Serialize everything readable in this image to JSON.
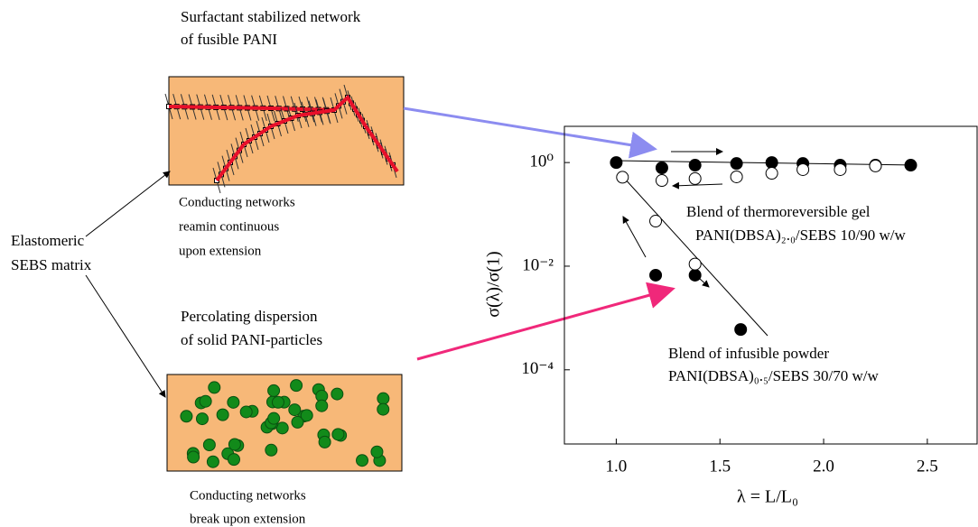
{
  "diagram": {
    "top_title": [
      "Surfactant stabilized network",
      "of fusible PANI"
    ],
    "top_caption": [
      "Conducting networks",
      "reamin continuous",
      "upon extension"
    ],
    "matrix_label": [
      "Elastomeric",
      "SEBS matrix"
    ],
    "bottom_title": [
      "Percolating dispersion",
      "of solid PANI-particles"
    ],
    "bottom_caption": [
      "Conducting networks",
      "break upon extension"
    ]
  },
  "chart_data": {
    "type": "scatter",
    "xlabel": "λ = L/L₀",
    "ylabel": "σ(λ)/σ(1)",
    "xlim": [
      0.75,
      2.74
    ],
    "ylim": [
      3.7e-06,
      5
    ],
    "log_y": true,
    "xticks": [
      {
        "value": 1,
        "label": "1.0"
      },
      {
        "value": 1.5,
        "label": "1.5"
      },
      {
        "value": 2,
        "label": "2.0"
      },
      {
        "value": 2.5,
        "label": "2.5"
      }
    ],
    "yticks": [
      {
        "value": 1,
        "label": "10⁰"
      },
      {
        "value": 0.01,
        "label": "10⁻²"
      },
      {
        "value": 0.0001,
        "label": "10⁻⁴"
      }
    ],
    "annotations": [
      "Blend of thermoreversible gel",
      "PANI(DBSA)₂.₀/SEBS 10/90 w/w",
      "Blend of infusible powder",
      "PANI(DBSA)₀.₅/SEBS 30/70 w/w"
    ],
    "series": [
      {
        "marker": "filled",
        "color": "#000000",
        "x": [
          1.0,
          1.22,
          1.38,
          1.58,
          1.75,
          1.9,
          2.08,
          2.25,
          2.42
        ],
        "values": [
          1.0,
          0.79,
          0.89,
          0.96,
          1.0,
          0.96,
          0.89,
          0.89,
          0.89
        ]
      },
      {
        "marker": "open",
        "color": "#000000",
        "x": [
          1.22,
          1.38,
          1.58,
          1.75,
          1.9,
          2.08,
          2.25
        ],
        "values": [
          0.45,
          0.49,
          0.53,
          0.62,
          0.73,
          0.73,
          0.86
        ]
      },
      {
        "marker": "filled",
        "color": "#000000",
        "x": [
          1.19,
          1.38,
          1.6
        ],
        "values": [
          0.0067,
          0.0067,
          0.0006
        ]
      },
      {
        "marker": "open",
        "color": "#000000",
        "x": [
          1.03,
          1.19,
          1.38
        ],
        "values": [
          0.52,
          0.074,
          0.011
        ]
      }
    ]
  }
}
